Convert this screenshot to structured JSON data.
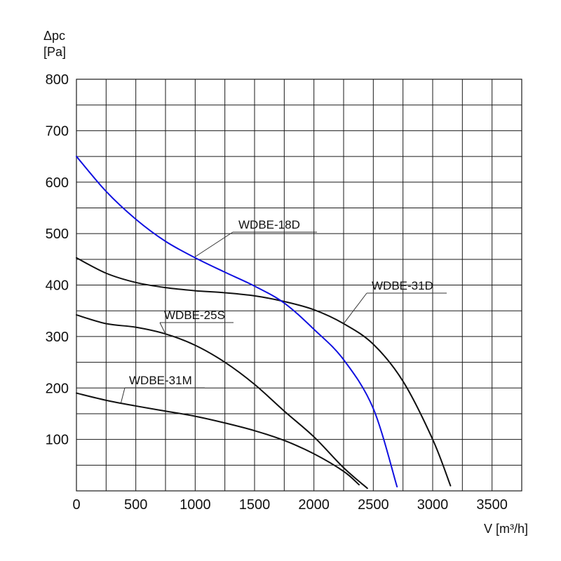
{
  "chart_data": {
    "type": "line",
    "title": "",
    "ylabel_line1": "Δpc",
    "ylabel_line2": "[Pa]",
    "xlabel": "V [m³/h]",
    "xlim": [
      0,
      3750
    ],
    "ylim": [
      0,
      800
    ],
    "x_ticks": [
      0,
      500,
      1000,
      1500,
      2000,
      2500,
      3000,
      3500
    ],
    "y_ticks": [
      100,
      200,
      300,
      400,
      500,
      600,
      700,
      800
    ],
    "x_minor_step": 250,
    "y_minor_step": 50,
    "grid": true,
    "series": [
      {
        "name": "WDBE-18D",
        "color": "#1010e0",
        "x": [
          0,
          250,
          500,
          750,
          1000,
          1250,
          1500,
          1750,
          2000,
          2250,
          2500,
          2700
        ],
        "y": [
          650,
          582,
          528,
          485,
          453,
          425,
          398,
          365,
          314,
          255,
          160,
          8
        ]
      },
      {
        "name": "WDBE-31D",
        "color": "#111111",
        "x": [
          0,
          250,
          500,
          750,
          1000,
          1250,
          1500,
          1750,
          2000,
          2250,
          2500,
          2750,
          3000,
          3150
        ],
        "y": [
          453,
          423,
          405,
          395,
          389,
          385,
          379,
          368,
          352,
          325,
          285,
          213,
          100,
          10
        ]
      },
      {
        "name": "WDBE-25S",
        "color": "#111111",
        "x": [
          0,
          250,
          500,
          750,
          1000,
          1250,
          1500,
          1750,
          2000,
          2250,
          2450
        ],
        "y": [
          342,
          325,
          318,
          305,
          283,
          250,
          207,
          155,
          105,
          45,
          5
        ]
      },
      {
        "name": "WDBE-31M",
        "color": "#111111",
        "x": [
          0,
          250,
          500,
          750,
          1000,
          1250,
          1500,
          1750,
          2000,
          2250,
          2380
        ],
        "y": [
          190,
          176,
          165,
          155,
          145,
          132,
          117,
          98,
          72,
          38,
          12
        ]
      }
    ],
    "annotations": [
      {
        "text": "WDBE-18D",
        "series": "WDBE-18D"
      },
      {
        "text": "WDBE-31D",
        "series": "WDBE-31D"
      },
      {
        "text": "WDBE-25S",
        "series": "WDBE-25S"
      },
      {
        "text": "WDBE-31M",
        "series": "WDBE-31M"
      }
    ]
  }
}
